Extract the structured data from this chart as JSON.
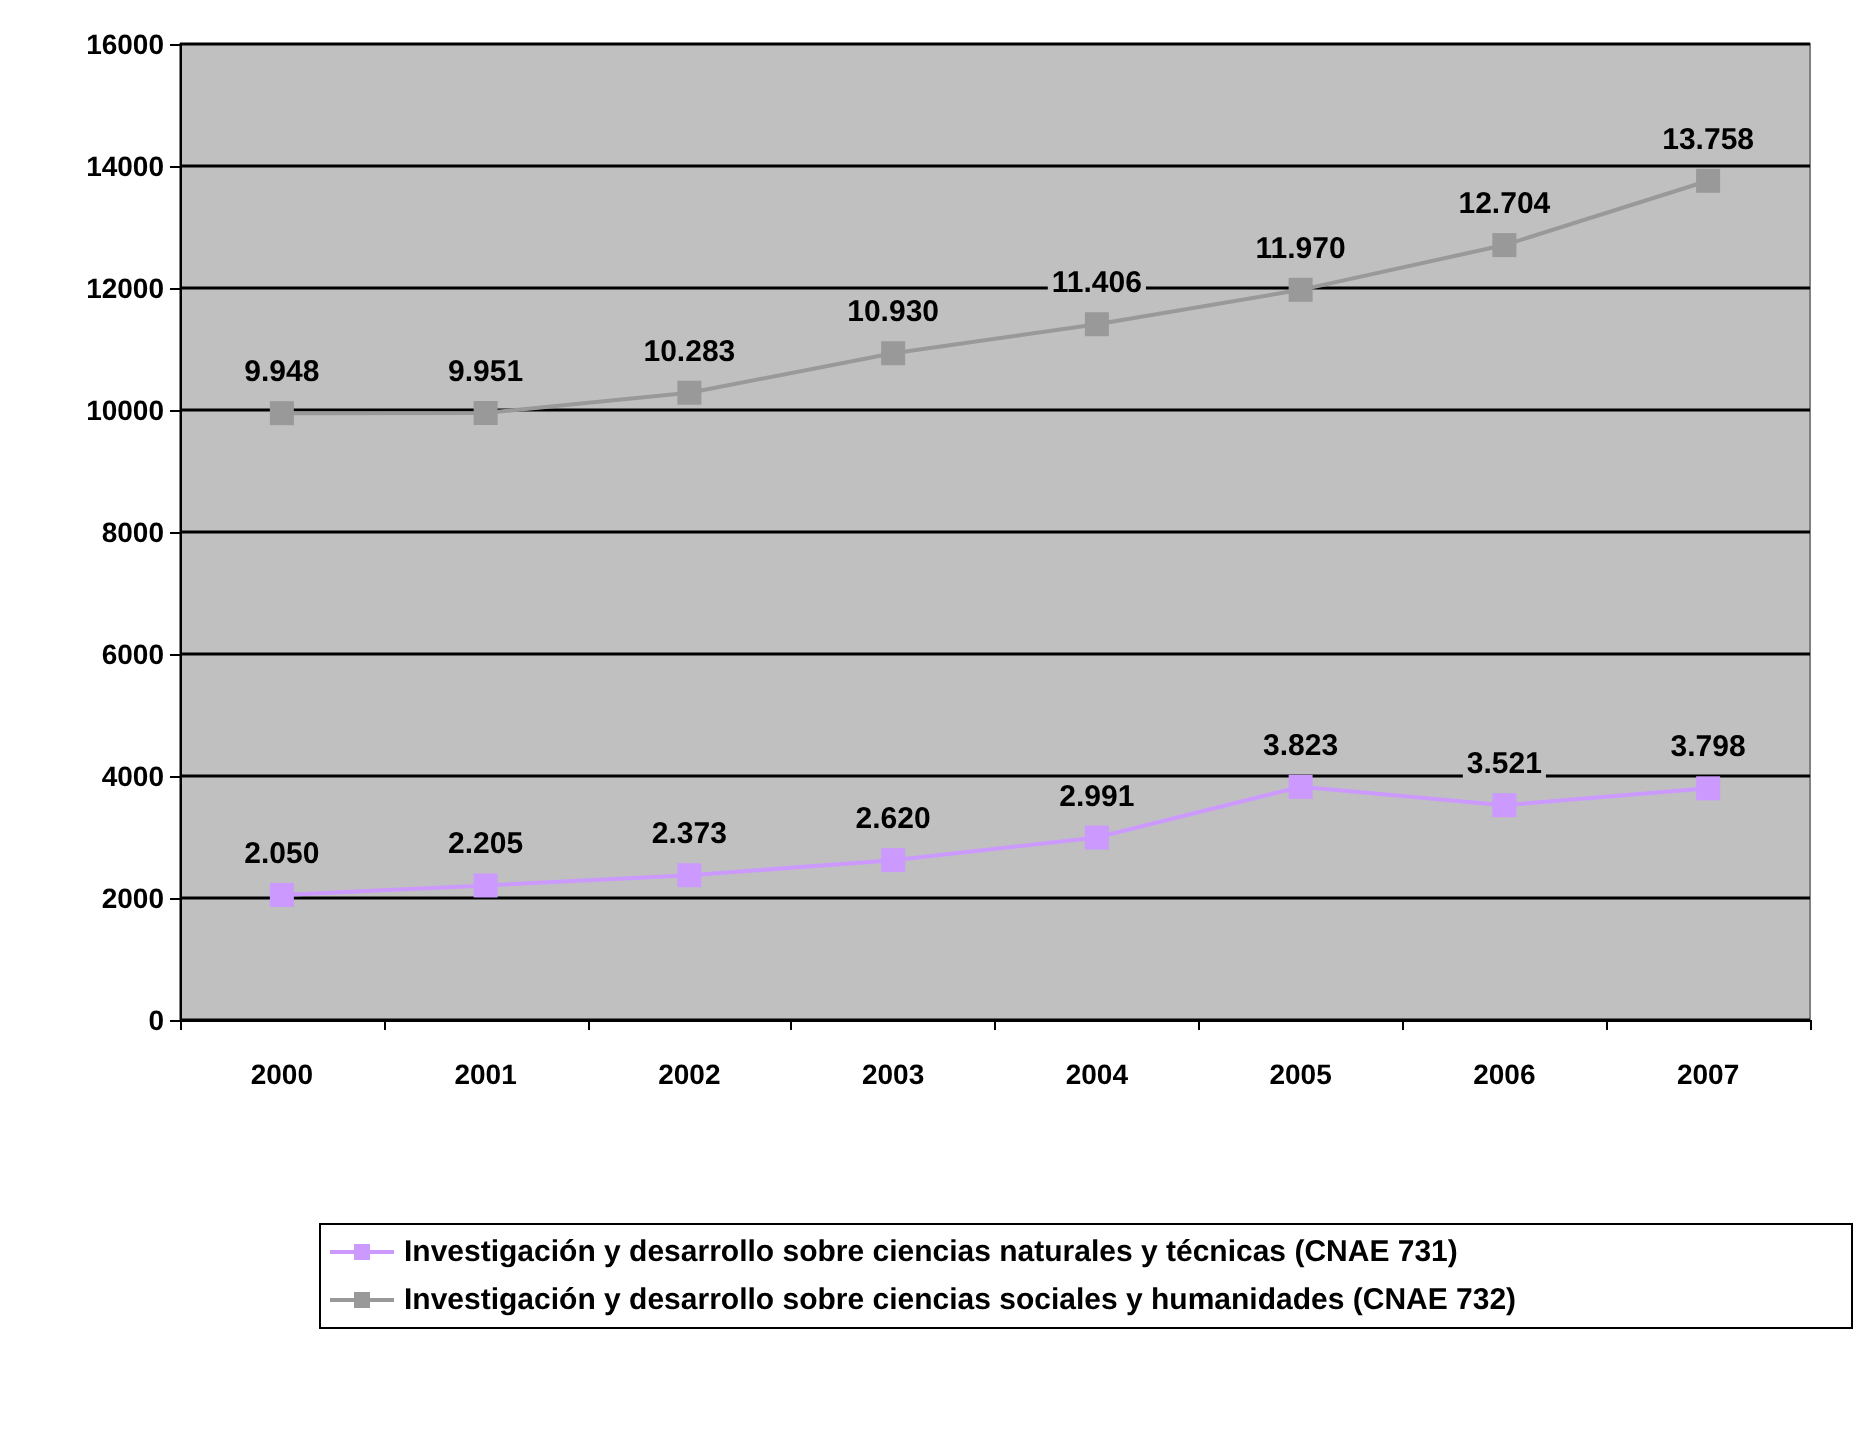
{
  "chart_data": {
    "type": "line",
    "categories": [
      "2000",
      "2001",
      "2002",
      "2003",
      "2004",
      "2005",
      "2006",
      "2007"
    ],
    "series": [
      {
        "name": "Investigación y desarrollo sobre ciencias naturales y técnicas (CNAE 731)",
        "color": "#cc99ff",
        "values": [
          2050,
          2205,
          2373,
          2620,
          2991,
          3823,
          3521,
          3798
        ],
        "value_labels": [
          "2.050",
          "2.205",
          "2.373",
          "2.620",
          "2.991",
          "3.823",
          "3.521",
          "3.798"
        ]
      },
      {
        "name": "Investigación y desarrollo sobre ciencias sociales y humanidades (CNAE 732)",
        "color": "#999999",
        "values": [
          9948,
          9951,
          10283,
          10930,
          11406,
          11970,
          12704,
          13758
        ],
        "value_labels": [
          "9.948",
          "9.951",
          "10.283",
          "10.930",
          "11.406",
          "11.970",
          "12.704",
          "13.758"
        ]
      }
    ],
    "ylim": [
      0,
      16000
    ],
    "yticks": [
      0,
      2000,
      4000,
      6000,
      8000,
      10000,
      12000,
      14000,
      16000
    ],
    "grid": "y",
    "legend": "bottom",
    "marker": "square",
    "line_style": "solid"
  }
}
